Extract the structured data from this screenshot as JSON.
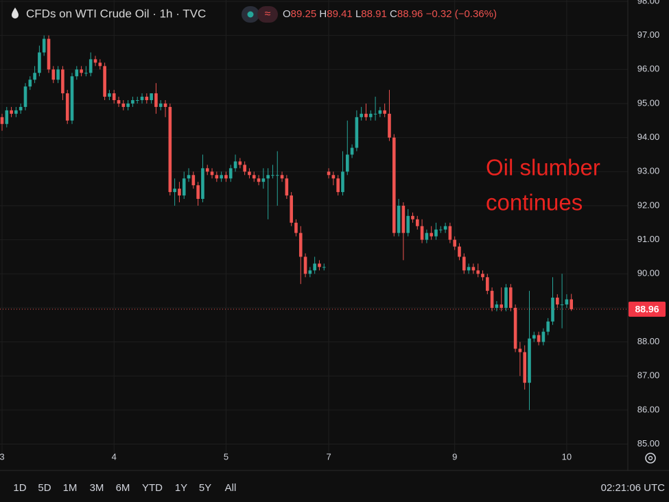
{
  "chart_data": {
    "type": "candlestick",
    "title": "CFDs on WTI Crude Oil · 1h · TVC",
    "header": {
      "o": "O",
      "h": "H",
      "l": "L",
      "c": "C",
      "change": "−0.32 (−0.36%)"
    },
    "annotation": [
      "Oil slumber",
      "continues"
    ],
    "up_color": "#26a69a",
    "down_color": "#ef5350",
    "annotation_color": "#e8231f",
    "grid": true,
    "last_price_label": "88.96",
    "ylim": [
      84.83,
      98.04
    ],
    "yticks": [
      {
        "value": 98,
        "label": "98.00"
      },
      {
        "value": 97,
        "label": "97.00"
      },
      {
        "value": 96,
        "label": "96.00"
      },
      {
        "value": 95,
        "label": "95.00"
      },
      {
        "value": 94,
        "label": "94.00"
      },
      {
        "value": 93,
        "label": "93.00"
      },
      {
        "value": 92,
        "label": "92.00"
      },
      {
        "value": 91,
        "label": "91.00"
      },
      {
        "value": 90,
        "label": "90.00"
      },
      {
        "value": 89,
        "label": "89.00"
      },
      {
        "value": 88,
        "label": "88.00"
      },
      {
        "value": 87,
        "label": "87.00"
      },
      {
        "value": 86,
        "label": "86.00"
      },
      {
        "value": 85,
        "label": "85.00"
      }
    ],
    "xlim": [
      -0.44,
      134.1
    ],
    "xticks": [
      {
        "value": 0,
        "label": "3"
      },
      {
        "value": 24,
        "label": "4"
      },
      {
        "value": 48,
        "label": "5"
      },
      {
        "value": 70,
        "label": "7"
      },
      {
        "value": 97,
        "label": "9"
      },
      {
        "value": 121,
        "label": "10"
      }
    ],
    "open": [
      94.6,
      94.4,
      94.8,
      94.7,
      94.8,
      94.9,
      95.5,
      95.7,
      95.9,
      96.5,
      96.9,
      96.0,
      95.7,
      96.0,
      95.3,
      94.5,
      95.8,
      96.0,
      95.9,
      95.9,
      96.3,
      96.2,
      96.1,
      95.2,
      95.3,
      95.1,
      95.0,
      94.9,
      95.0,
      95.1,
      95.1,
      95.2,
      95.1,
      95.3,
      94.9,
      95.0,
      94.9,
      92.4,
      92.5,
      92.3,
      92.8,
      92.9,
      92.6,
      92.2,
      93.1,
      93.0,
      92.9,
      92.8,
      92.9,
      92.8,
      93.1,
      93.3,
      93.2,
      93.0,
      92.9,
      92.8,
      92.7,
      92.8,
      92.9,
      92.9,
      92.9,
      92.8,
      92.3,
      91.5,
      91.2,
      90.5,
      90.0,
      90.1,
      90.3,
      90.2,
      93.0,
      92.9,
      92.8,
      92.4,
      93.0,
      93.5,
      93.7,
      94.6,
      94.7,
      94.6,
      94.7,
      94.7,
      94.8,
      94.7,
      94.0,
      91.2,
      92.0,
      91.2,
      91.7,
      91.6,
      91.4,
      91.0,
      91.2,
      91.1,
      91.3,
      91.3,
      91.4,
      91.0,
      90.8,
      90.5,
      90.1,
      90.2,
      90.1,
      90.0,
      89.9,
      89.5,
      89.0,
      89.1,
      89.0,
      89.6,
      89.0,
      87.8,
      87.7,
      86.8,
      88.1,
      88.2,
      88.0,
      88.3,
      88.6,
      89.3,
      89.1,
      89.1,
      89.25
    ],
    "high": [
      94.7,
      94.9,
      94.9,
      94.9,
      95.0,
      95.6,
      95.8,
      96.1,
      96.7,
      97.0,
      97.0,
      96.1,
      96.1,
      96.1,
      95.4,
      95.9,
      96.1,
      96.1,
      96.1,
      96.5,
      96.4,
      96.3,
      96.2,
      95.4,
      95.4,
      95.2,
      95.1,
      95.1,
      95.2,
      95.2,
      95.3,
      95.3,
      95.3,
      95.6,
      95.1,
      95.1,
      95.0,
      92.8,
      92.7,
      93.0,
      93.1,
      93.0,
      92.7,
      93.5,
      93.2,
      93.1,
      93.0,
      93.0,
      93.0,
      93.2,
      93.5,
      93.4,
      93.3,
      93.1,
      93.0,
      92.9,
      93.1,
      93.1,
      93.2,
      93.6,
      93.0,
      92.9,
      92.4,
      91.6,
      91.4,
      90.6,
      90.2,
      90.5,
      90.4,
      90.3,
      93.1,
      93.0,
      92.9,
      93.6,
      94.5,
      93.8,
      94.8,
      94.9,
      95.0,
      94.8,
      95.2,
      94.9,
      95.0,
      95.4,
      94.1,
      92.2,
      92.1,
      91.9,
      91.8,
      91.7,
      91.6,
      91.3,
      91.4,
      91.5,
      91.4,
      91.5,
      91.5,
      91.1,
      90.9,
      90.6,
      90.3,
      90.3,
      90.3,
      90.1,
      90.0,
      89.6,
      89.2,
      89.6,
      89.7,
      89.7,
      89.1,
      88.0,
      87.9,
      89.5,
      88.3,
      88.3,
      88.4,
      88.7,
      89.9,
      89.4,
      90.0,
      89.4,
      89.41
    ],
    "low": [
      94.2,
      94.3,
      94.6,
      94.6,
      94.7,
      94.8,
      95.4,
      95.6,
      95.8,
      96.4,
      95.9,
      95.6,
      95.6,
      95.1,
      94.4,
      94.4,
      95.7,
      95.8,
      95.8,
      95.8,
      96.1,
      96.0,
      95.1,
      95.1,
      95.0,
      94.9,
      94.8,
      94.8,
      94.9,
      95.0,
      95.0,
      95.0,
      95.0,
      94.7,
      94.8,
      94.6,
      92.3,
      92.0,
      92.1,
      92.2,
      92.7,
      92.5,
      92.0,
      92.1,
      92.9,
      92.8,
      92.7,
      92.7,
      92.7,
      92.7,
      93.0,
      93.1,
      92.9,
      92.8,
      92.7,
      92.6,
      92.5,
      91.6,
      92.8,
      92.0,
      92.7,
      92.2,
      91.4,
      91.1,
      89.7,
      89.9,
      89.9,
      90.0,
      90.1,
      90.1,
      92.8,
      92.6,
      92.3,
      92.3,
      92.9,
      93.4,
      93.6,
      94.5,
      94.5,
      94.5,
      94.5,
      94.6,
      94.6,
      93.9,
      91.1,
      91.1,
      90.4,
      91.1,
      91.5,
      91.3,
      90.9,
      90.9,
      91.0,
      91.0,
      91.2,
      91.2,
      90.9,
      90.7,
      90.4,
      90.0,
      90.0,
      90.0,
      89.9,
      89.8,
      89.4,
      88.9,
      88.9,
      88.9,
      88.9,
      88.9,
      87.7,
      87.0,
      86.6,
      86.0,
      88.0,
      87.9,
      87.9,
      88.2,
      88.5,
      89.0,
      88.4,
      89.0,
      88.91
    ],
    "close": [
      94.4,
      94.8,
      94.7,
      94.8,
      94.9,
      95.5,
      95.7,
      95.9,
      96.5,
      96.9,
      96.0,
      95.7,
      96.0,
      95.3,
      94.5,
      95.8,
      96.0,
      95.9,
      95.9,
      96.3,
      96.2,
      96.1,
      95.2,
      95.3,
      95.1,
      95.0,
      94.9,
      95.0,
      95.1,
      95.1,
      95.2,
      95.1,
      95.3,
      94.9,
      95.0,
      94.9,
      92.4,
      92.5,
      92.3,
      92.8,
      92.9,
      92.6,
      92.2,
      93.1,
      93.0,
      92.9,
      92.8,
      92.9,
      92.8,
      93.1,
      93.3,
      93.2,
      93.0,
      92.9,
      92.8,
      92.7,
      92.8,
      92.9,
      92.9,
      92.9,
      92.8,
      92.3,
      91.5,
      91.2,
      90.5,
      90.0,
      90.1,
      90.3,
      90.2,
      90.2,
      92.9,
      92.8,
      92.4,
      93.0,
      93.5,
      93.7,
      94.6,
      94.7,
      94.6,
      94.7,
      94.7,
      94.8,
      94.7,
      94.0,
      91.2,
      92.0,
      91.2,
      91.7,
      91.6,
      91.4,
      91.0,
      91.2,
      91.1,
      91.3,
      91.3,
      91.4,
      91.0,
      90.8,
      90.5,
      90.1,
      90.2,
      90.1,
      90.0,
      89.9,
      89.5,
      89.0,
      89.1,
      89.0,
      89.6,
      89.0,
      87.8,
      87.7,
      86.8,
      88.1,
      88.2,
      88.0,
      88.3,
      88.6,
      89.3,
      89.1,
      89.1,
      89.25,
      88.96
    ]
  },
  "toolbar": {
    "ranges": [
      "1D",
      "5D",
      "1M",
      "3M",
      "6M",
      "YTD",
      "1Y",
      "5Y",
      "All"
    ],
    "time": "02:21:06 UTC"
  }
}
